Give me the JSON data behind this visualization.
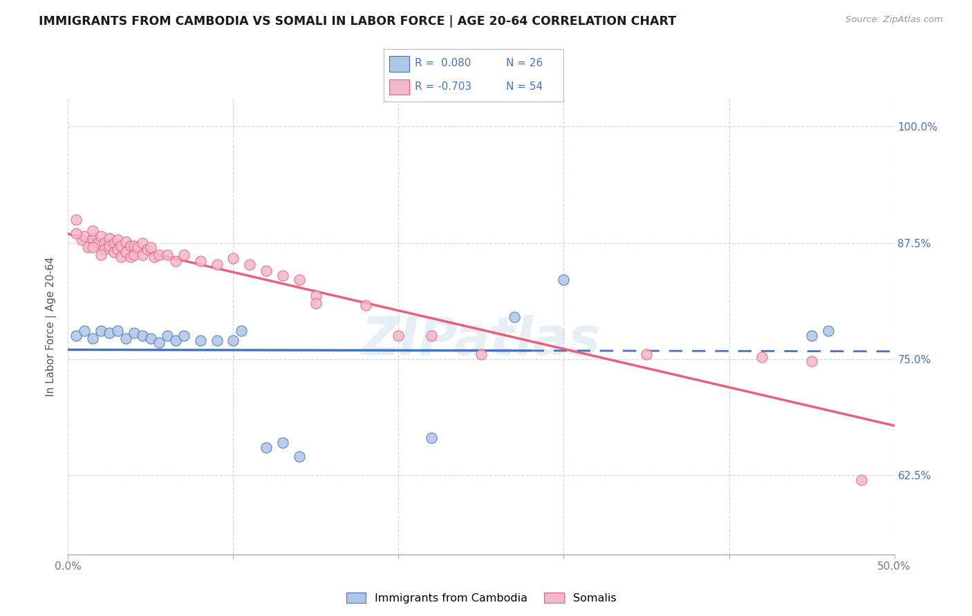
{
  "title": "IMMIGRANTS FROM CAMBODIA VS SOMALI IN LABOR FORCE | AGE 20-64 CORRELATION CHART",
  "source": "Source: ZipAtlas.com",
  "ylabel": "In Labor Force | Age 20-64",
  "xlim": [
    0.0,
    0.5
  ],
  "ylim": [
    0.54,
    1.03
  ],
  "x_ticks": [
    0.0,
    0.1,
    0.2,
    0.3,
    0.4,
    0.5
  ],
  "x_tick_labels": [
    "0.0%",
    "",
    "",
    "",
    "",
    "50.0%"
  ],
  "y_ticks": [
    0.625,
    0.75,
    0.875,
    1.0
  ],
  "y_tick_labels": [
    "62.5%",
    "75.0%",
    "87.5%",
    "100.0%"
  ],
  "cambodia_color": "#aec6e8",
  "somali_color": "#f5b8c8",
  "cambodia_line_color": "#4472c4",
  "somali_line_color": "#e8607a",
  "watermark": "ZIPatlas",
  "background_color": "#ffffff",
  "grid_color": "#cccccc",
  "cambodia_scatter_x": [
    0.005,
    0.01,
    0.015,
    0.02,
    0.025,
    0.03,
    0.035,
    0.04,
    0.045,
    0.05,
    0.055,
    0.06,
    0.065,
    0.07,
    0.08,
    0.09,
    0.1,
    0.105,
    0.13,
    0.22,
    0.27,
    0.3,
    0.45,
    0.46,
    0.12,
    0.14
  ],
  "cambodia_scatter_y": [
    0.775,
    0.78,
    0.772,
    0.78,
    0.778,
    0.78,
    0.772,
    0.778,
    0.775,
    0.772,
    0.768,
    0.775,
    0.77,
    0.775,
    0.77,
    0.77,
    0.77,
    0.78,
    0.66,
    0.665,
    0.795,
    0.835,
    0.775,
    0.78,
    0.655,
    0.645
  ],
  "somali_scatter_x": [
    0.005,
    0.008,
    0.01,
    0.012,
    0.015,
    0.015,
    0.018,
    0.02,
    0.022,
    0.022,
    0.025,
    0.025,
    0.028,
    0.028,
    0.03,
    0.03,
    0.032,
    0.032,
    0.035,
    0.035,
    0.038,
    0.038,
    0.04,
    0.04,
    0.042,
    0.045,
    0.045,
    0.048,
    0.05,
    0.052,
    0.055,
    0.06,
    0.065,
    0.07,
    0.08,
    0.09,
    0.1,
    0.11,
    0.12,
    0.13,
    0.14,
    0.15,
    0.15,
    0.18,
    0.2,
    0.22,
    0.25,
    0.35,
    0.42,
    0.45,
    0.48,
    0.005,
    0.015,
    0.02
  ],
  "somali_scatter_y": [
    0.9,
    0.878,
    0.882,
    0.87,
    0.88,
    0.888,
    0.875,
    0.882,
    0.875,
    0.868,
    0.88,
    0.872,
    0.875,
    0.865,
    0.878,
    0.868,
    0.872,
    0.86,
    0.876,
    0.865,
    0.872,
    0.86,
    0.872,
    0.862,
    0.87,
    0.875,
    0.862,
    0.868,
    0.87,
    0.86,
    0.862,
    0.862,
    0.855,
    0.862,
    0.855,
    0.852,
    0.858,
    0.852,
    0.845,
    0.84,
    0.835,
    0.818,
    0.81,
    0.808,
    0.775,
    0.775,
    0.755,
    0.755,
    0.752,
    0.748,
    0.62,
    0.885,
    0.87,
    0.862
  ]
}
